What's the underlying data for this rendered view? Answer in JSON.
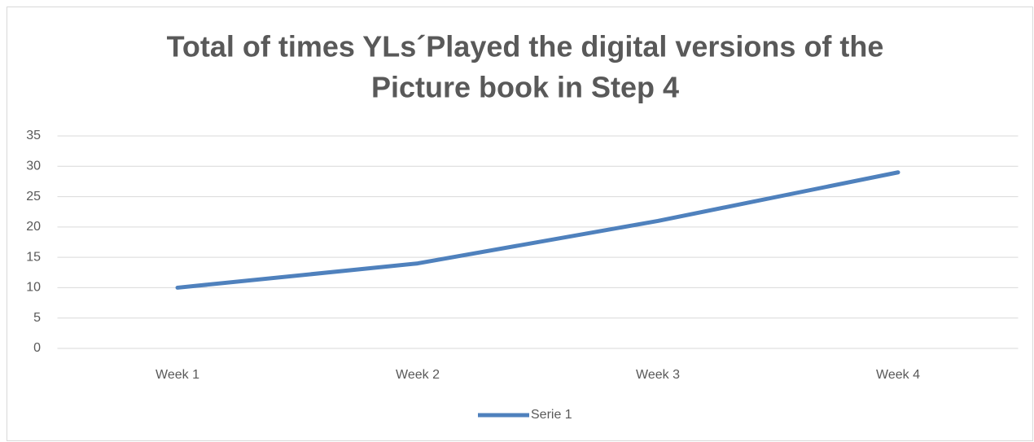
{
  "chart_data": {
    "type": "line",
    "title": [
      "Total of times YLs´Played the digital versions of the",
      "Picture book in Step 4"
    ],
    "categories": [
      "Week 1",
      "Week 2",
      "Week 3",
      "Week 4"
    ],
    "series": [
      {
        "name": "Serie 1",
        "color": "#4f81bd",
        "values": [
          10,
          14,
          21,
          29
        ]
      }
    ],
    "ylim": [
      0,
      35
    ],
    "yticks": [
      0,
      5,
      10,
      15,
      20,
      25,
      30,
      35
    ],
    "grid": true,
    "legend": "bottom"
  }
}
